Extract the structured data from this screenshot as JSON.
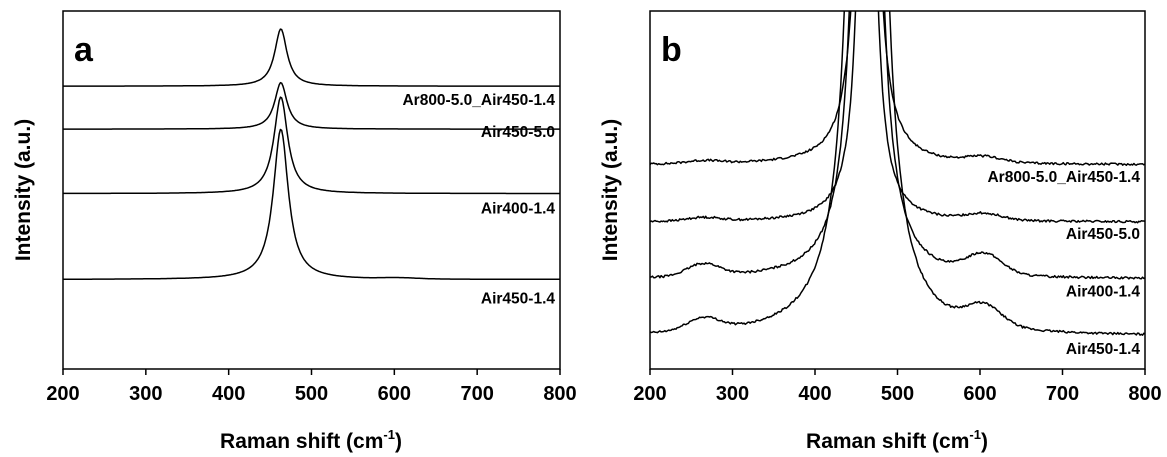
{
  "chart_data": [
    {
      "type": "line",
      "panel_label": "a",
      "xlabel": "Raman shift (cm",
      "xlabel_sup": "-1",
      "xlabel_close": ")",
      "ylabel": "Intensity (a.u.)",
      "xlim": [
        200,
        800
      ],
      "xticks": [
        "200",
        "300",
        "400",
        "500",
        "600",
        "700",
        "800"
      ],
      "peak_center": 463,
      "series": [
        {
          "name": "Ar800-5.0_Air450-1.4",
          "baseline": 0.79,
          "peak_height": 0.16,
          "hwhm": 9,
          "bump_600": 0.0
        },
        {
          "name": "Air450-5.0",
          "baseline": 0.67,
          "peak_height": 0.13,
          "hwhm": 9,
          "bump_600": 0.0
        },
        {
          "name": "Air400-1.4",
          "baseline": 0.49,
          "peak_height": 0.27,
          "hwhm": 10,
          "bump_600": 0.0
        },
        {
          "name": "Air450-1.4",
          "baseline": 0.25,
          "peak_height": 0.42,
          "hwhm": 11,
          "bump_600": 0.003
        }
      ]
    },
    {
      "type": "line",
      "panel_label": "b",
      "xlabel": "Raman shift (cm",
      "xlabel_sup": "-1",
      "xlabel_close": ")",
      "ylabel": "Intensity (a.u.)",
      "xlim": [
        200,
        800
      ],
      "xticks": [
        "200",
        "300",
        "400",
        "500",
        "600",
        "700",
        "800"
      ],
      "peak_center": 463,
      "series": [
        {
          "name": "Ar800-5.0_Air450-1.4",
          "baseline": 0.57,
          "peak_height": 2.5,
          "hwhm": 9,
          "bump_600": 0.015,
          "bump_260": 0.008
        },
        {
          "name": "Air450-5.0",
          "baseline": 0.41,
          "peak_height": 2.0,
          "hwhm": 9,
          "bump_600": 0.018,
          "bump_260": 0.01
        },
        {
          "name": "Air400-1.4",
          "baseline": 0.25,
          "peak_height": 4.2,
          "hwhm": 10,
          "bump_600": 0.055,
          "bump_260": 0.035
        },
        {
          "name": "Air450-1.4",
          "baseline": 0.09,
          "peak_height": 6.6,
          "hwhm": 11,
          "bump_600": 0.055,
          "bump_260": 0.035
        }
      ]
    }
  ]
}
